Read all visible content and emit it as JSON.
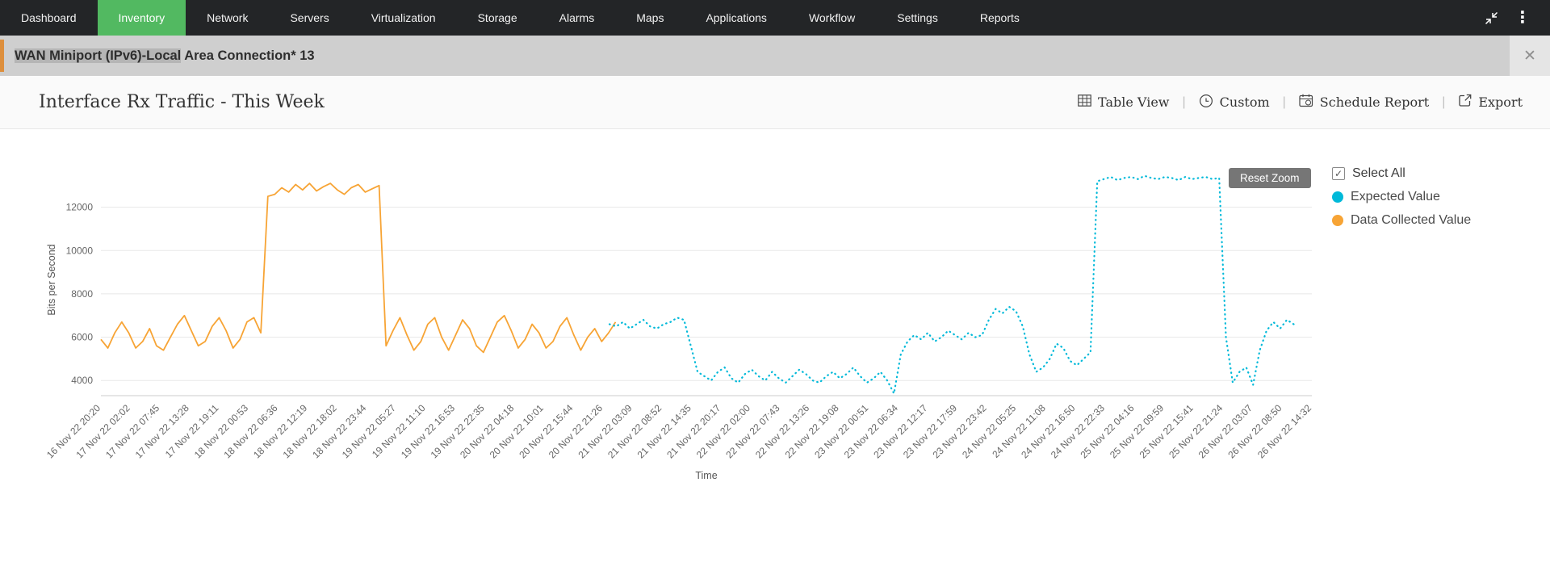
{
  "nav": {
    "items": [
      {
        "label": "Dashboard"
      },
      {
        "label": "Inventory",
        "active": true
      },
      {
        "label": "Network"
      },
      {
        "label": "Servers"
      },
      {
        "label": "Virtualization"
      },
      {
        "label": "Storage"
      },
      {
        "label": "Alarms"
      },
      {
        "label": "Maps"
      },
      {
        "label": "Applications"
      },
      {
        "label": "Workflow"
      },
      {
        "label": "Settings"
      },
      {
        "label": "Reports"
      }
    ]
  },
  "icons": {
    "close": "✕",
    "menu_dots": "⋮",
    "checkbox_check": "✓"
  },
  "banner": {
    "title_selected": "WAN Miniport (IPv6)-Local",
    "title_rest": " Area Connection* 13"
  },
  "report_header": {
    "title": "Interface Rx Traffic - This Week",
    "actions": [
      {
        "label": "Table View"
      },
      {
        "label": "Custom"
      },
      {
        "label": "Schedule Report"
      },
      {
        "label": "Export"
      }
    ]
  },
  "chart": {
    "reset_zoom_label": "Reset Zoom",
    "legend": {
      "select_all_label": "Select All",
      "series": [
        {
          "label": "Expected Value",
          "color": "#00b9d9"
        },
        {
          "label": "Data Collected Value",
          "color": "#f7a435"
        }
      ]
    }
  },
  "chart_data": {
    "type": "line",
    "title": "Interface Rx Traffic - This Week",
    "xlabel": "Time",
    "ylabel": "Bits per Second",
    "ylim": [
      3300,
      14000
    ],
    "yticks": [
      4000,
      6000,
      8000,
      10000,
      12000
    ],
    "grid": "horizontal",
    "legend_position": "right",
    "x_labels": [
      "16 Nov 22 20:20",
      "17 Nov 22 02:02",
      "17 Nov 22 07:45",
      "17 Nov 22 13:28",
      "17 Nov 22 19:11",
      "18 Nov 22 00:53",
      "18 Nov 22 06:36",
      "18 Nov 22 12:19",
      "18 Nov 22 18:02",
      "18 Nov 22 23:44",
      "19 Nov 22 05:27",
      "19 Nov 22 11:10",
      "19 Nov 22 16:53",
      "19 Nov 22 22:35",
      "20 Nov 22 04:18",
      "20 Nov 22 10:01",
      "20 Nov 22 15:44",
      "20 Nov 22 21:26",
      "21 Nov 22 03:09",
      "21 Nov 22 08:52",
      "21 Nov 22 14:35",
      "21 Nov 22 20:17",
      "22 Nov 22 02:00",
      "22 Nov 22 07:43",
      "22 Nov 22 13:26",
      "22 Nov 22 19:08",
      "23 Nov 22 00:51",
      "23 Nov 22 06:34",
      "23 Nov 22 12:17",
      "23 Nov 22 17:59",
      "23 Nov 22 23:42",
      "24 Nov 22 05:25",
      "24 Nov 22 11:08",
      "24 Nov 22 16:50",
      "24 Nov 22 22:33",
      "25 Nov 22 04:16",
      "25 Nov 22 09:59",
      "25 Nov 22 15:41",
      "25 Nov 22 21:24",
      "26 Nov 22 03:07",
      "26 Nov 22 08:50",
      "26 Nov 22 14:32"
    ],
    "series": [
      {
        "name": "Data Collected Value",
        "color": "#f7a435",
        "style": "solid",
        "x_range": [
          0.0,
          0.425
        ],
        "values": [
          5900,
          5500,
          6200,
          6700,
          6200,
          5500,
          5800,
          6400,
          5600,
          5400,
          6000,
          6600,
          7000,
          6300,
          5600,
          5800,
          6500,
          6900,
          6300,
          5500,
          5900,
          6700,
          6900,
          6200,
          12500,
          12600,
          12900,
          12700,
          13050,
          12800,
          13100,
          12750,
          12950,
          13100,
          12800,
          12600,
          12900,
          13050,
          12700,
          12850,
          13000,
          5600,
          6300,
          6900,
          6100,
          5400,
          5800,
          6600,
          6900,
          6000,
          5400,
          6100,
          6800,
          6400,
          5600,
          5300,
          6000,
          6700,
          7000,
          6300,
          5500,
          5900,
          6600,
          6200,
          5500,
          5800,
          6500,
          6900,
          6100,
          5400,
          6000,
          6400,
          5800,
          6200,
          6700
        ]
      },
      {
        "name": "Expected Value",
        "color": "#00b9d9",
        "style": "dotted",
        "x_range": [
          0.42,
          0.985
        ],
        "values": [
          6600,
          6500,
          6700,
          6400,
          6600,
          6800,
          6500,
          6400,
          6600,
          6700,
          6900,
          6800,
          5600,
          4400,
          4200,
          4000,
          4400,
          4600,
          4100,
          3900,
          4300,
          4500,
          4200,
          4000,
          4400,
          4100,
          3900,
          4200,
          4500,
          4300,
          4000,
          3900,
          4200,
          4400,
          4100,
          4300,
          4600,
          4200,
          3900,
          4100,
          4400,
          4000,
          3400,
          5200,
          5800,
          6100,
          5900,
          6200,
          5800,
          6000,
          6300,
          6100,
          5900,
          6200,
          6000,
          6100,
          6800,
          7300,
          7100,
          7400,
          7200,
          6500,
          5200,
          4400,
          4600,
          5000,
          5700,
          5500,
          4900,
          4700,
          5000,
          5300,
          13200,
          13300,
          13400,
          13250,
          13350,
          13400,
          13300,
          13450,
          13350,
          13300,
          13400,
          13350,
          13250,
          13400,
          13300,
          13350,
          13400,
          13300,
          13350,
          6000,
          3900,
          4400,
          4600,
          3800,
          5400,
          6300,
          6700,
          6400,
          6800,
          6600
        ]
      }
    ]
  }
}
